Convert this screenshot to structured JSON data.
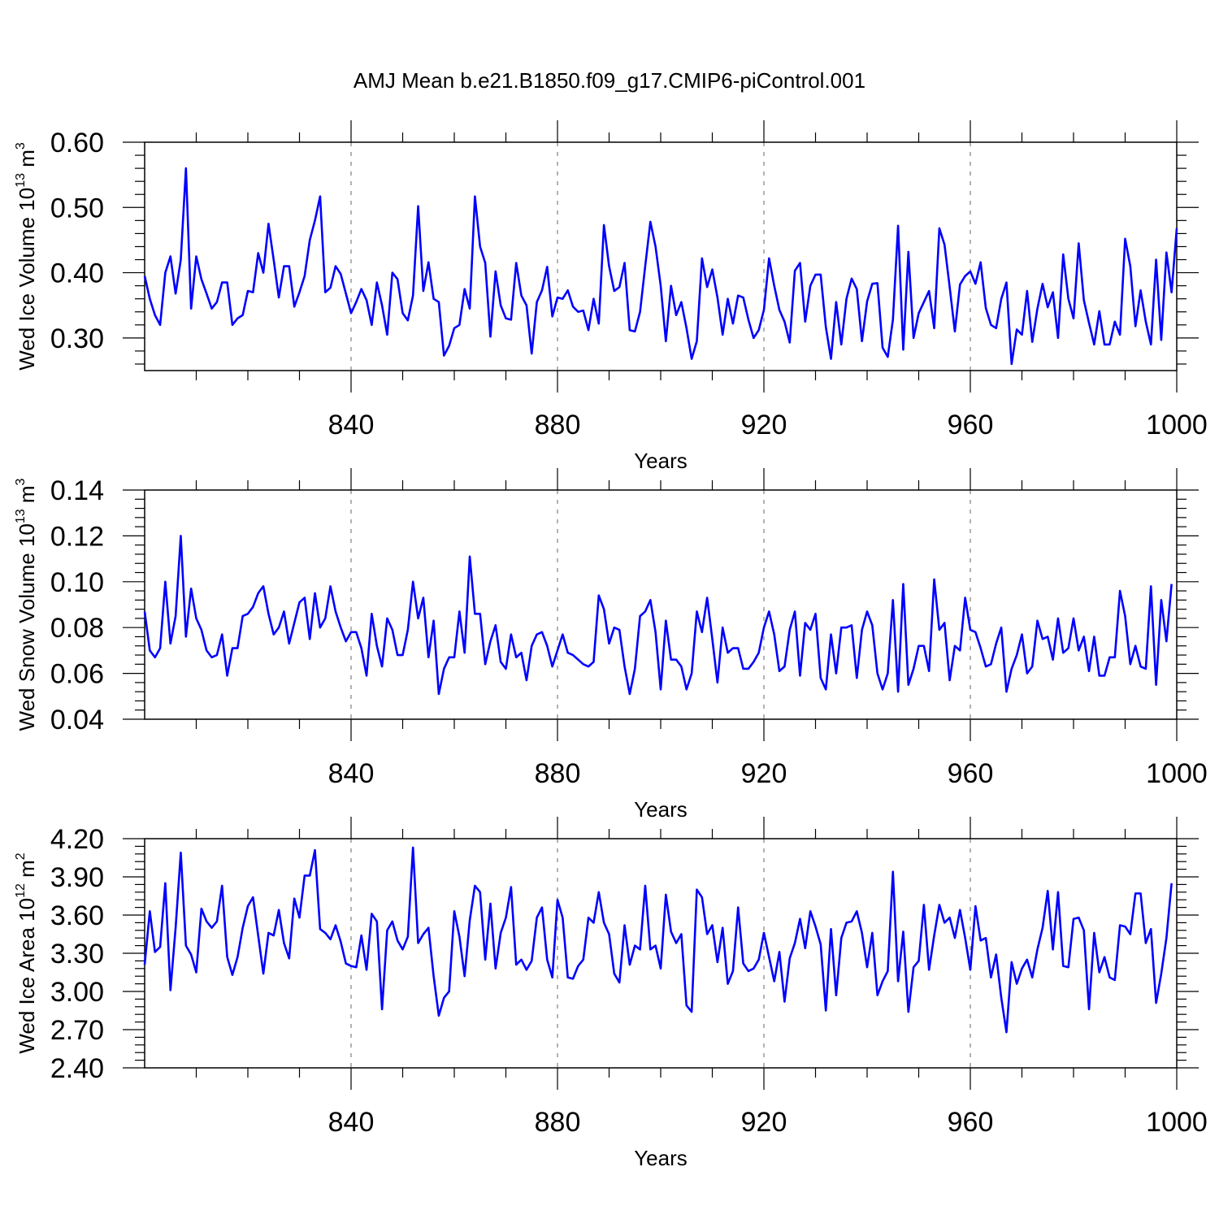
{
  "title": "AMJ Mean b.e21.B1850.f09_g17.CMIP6-piControl.001",
  "colors": {
    "line": "#0000ff",
    "axis": "#000000",
    "grid": "#808080"
  },
  "chart_data": [
    {
      "type": "line",
      "xlabel": "Years",
      "ylabel_main": "Wed Ice Volume 10",
      "ylabel_exp": "13",
      "ylabel_unit": " m",
      "ylabel_unit_exp": "3",
      "xlim": [
        800,
        1000
      ],
      "ylim": [
        0.25,
        0.6
      ],
      "xticks": [
        840,
        880,
        920,
        960,
        1000
      ],
      "xtick_labels": [
        "840",
        "880",
        "920",
        "960",
        "1000"
      ],
      "yticks": [
        0.3,
        0.4,
        0.5,
        0.6
      ],
      "ytick_labels": [
        "0.30",
        "0.40",
        "0.50",
        "0.60"
      ],
      "grid_x_dashed": [
        840,
        880,
        920,
        960
      ],
      "x_start": 800,
      "x_step": 1,
      "values": [
        0.395,
        0.36,
        0.335,
        0.32,
        0.4,
        0.425,
        0.368,
        0.42,
        0.56,
        0.345,
        0.425,
        0.39,
        0.368,
        0.345,
        0.355,
        0.385,
        0.385,
        0.32,
        0.33,
        0.335,
        0.372,
        0.37,
        0.43,
        0.4,
        0.475,
        0.42,
        0.362,
        0.41,
        0.41,
        0.348,
        0.37,
        0.395,
        0.45,
        0.48,
        0.517,
        0.37,
        0.377,
        0.41,
        0.398,
        0.368,
        0.338,
        0.355,
        0.375,
        0.358,
        0.32,
        0.385,
        0.35,
        0.305,
        0.4,
        0.39,
        0.338,
        0.327,
        0.365,
        0.502,
        0.372,
        0.416,
        0.36,
        0.355,
        0.273,
        0.288,
        0.315,
        0.32,
        0.375,
        0.345,
        0.517,
        0.44,
        0.415,
        0.302,
        0.402,
        0.35,
        0.33,
        0.328,
        0.415,
        0.365,
        0.35,
        0.276,
        0.355,
        0.373,
        0.409,
        0.333,
        0.362,
        0.36,
        0.373,
        0.348,
        0.34,
        0.342,
        0.312,
        0.36,
        0.322,
        0.473,
        0.41,
        0.372,
        0.378,
        0.415,
        0.312,
        0.31,
        0.34,
        0.41,
        0.478,
        0.44,
        0.38,
        0.295,
        0.38,
        0.335,
        0.355,
        0.315,
        0.268,
        0.295,
        0.422,
        0.378,
        0.405,
        0.362,
        0.305,
        0.36,
        0.322,
        0.365,
        0.362,
        0.328,
        0.3,
        0.312,
        0.343,
        0.422,
        0.38,
        0.343,
        0.325,
        0.293,
        0.403,
        0.415,
        0.325,
        0.38,
        0.397,
        0.397,
        0.317,
        0.268,
        0.355,
        0.29,
        0.36,
        0.391,
        0.375,
        0.295,
        0.356,
        0.383,
        0.384,
        0.285,
        0.271,
        0.328,
        0.472,
        0.282,
        0.432,
        0.3,
        0.338,
        0.355,
        0.372,
        0.315,
        0.468,
        0.443,
        0.378,
        0.31,
        0.382,
        0.395,
        0.402,
        0.383,
        0.416,
        0.346,
        0.32,
        0.315,
        0.36,
        0.385,
        0.26,
        0.313,
        0.305,
        0.372,
        0.294,
        0.345,
        0.383,
        0.347,
        0.37,
        0.3,
        0.428,
        0.36,
        0.33,
        0.445,
        0.358,
        0.323,
        0.29,
        0.341,
        0.29,
        0.29,
        0.325,
        0.305,
        0.452,
        0.41,
        0.318,
        0.373,
        0.325,
        0.29,
        0.42,
        0.297,
        0.431,
        0.37,
        0.468
      ]
    },
    {
      "type": "line",
      "xlabel": "Years",
      "ylabel_main": "Wed Snow Volume 10",
      "ylabel_exp": "13",
      "ylabel_unit": " m",
      "ylabel_unit_exp": "3",
      "xlim": [
        800,
        1000
      ],
      "ylim": [
        0.04,
        0.14
      ],
      "xticks": [
        840,
        880,
        920,
        960,
        1000
      ],
      "xtick_labels": [
        "840",
        "880",
        "920",
        "960",
        "1000"
      ],
      "yticks": [
        0.04,
        0.06,
        0.08,
        0.1,
        0.12,
        0.14
      ],
      "ytick_labels": [
        "0.04",
        "0.06",
        "0.08",
        "0.10",
        "0.12",
        "0.14"
      ],
      "grid_x_dashed": [
        840,
        880,
        920,
        960
      ],
      "x_start": 800,
      "x_step": 1,
      "values": [
        0.087,
        0.07,
        0.067,
        0.071,
        0.1,
        0.073,
        0.085,
        0.12,
        0.076,
        0.097,
        0.084,
        0.079,
        0.07,
        0.067,
        0.068,
        0.077,
        0.059,
        0.071,
        0.071,
        0.085,
        0.086,
        0.089,
        0.095,
        0.098,
        0.086,
        0.077,
        0.08,
        0.087,
        0.073,
        0.082,
        0.091,
        0.093,
        0.075,
        0.095,
        0.08,
        0.084,
        0.098,
        0.087,
        0.08,
        0.074,
        0.078,
        0.078,
        0.071,
        0.059,
        0.086,
        0.072,
        0.063,
        0.084,
        0.079,
        0.068,
        0.068,
        0.079,
        0.1,
        0.084,
        0.093,
        0.067,
        0.083,
        0.051,
        0.062,
        0.067,
        0.067,
        0.087,
        0.069,
        0.111,
        0.086,
        0.086,
        0.064,
        0.074,
        0.081,
        0.065,
        0.062,
        0.077,
        0.067,
        0.069,
        0.057,
        0.072,
        0.077,
        0.078,
        0.072,
        0.063,
        0.07,
        0.077,
        0.069,
        0.068,
        0.066,
        0.064,
        0.063,
        0.065,
        0.094,
        0.088,
        0.073,
        0.08,
        0.079,
        0.063,
        0.051,
        0.062,
        0.085,
        0.087,
        0.092,
        0.078,
        0.053,
        0.083,
        0.066,
        0.066,
        0.063,
        0.053,
        0.06,
        0.087,
        0.078,
        0.093,
        0.075,
        0.056,
        0.08,
        0.069,
        0.071,
        0.071,
        0.062,
        0.062,
        0.065,
        0.069,
        0.08,
        0.087,
        0.077,
        0.061,
        0.063,
        0.079,
        0.087,
        0.059,
        0.082,
        0.079,
        0.086,
        0.058,
        0.053,
        0.077,
        0.06,
        0.08,
        0.08,
        0.081,
        0.058,
        0.079,
        0.087,
        0.081,
        0.06,
        0.053,
        0.06,
        0.092,
        0.052,
        0.099,
        0.055,
        0.062,
        0.072,
        0.072,
        0.061,
        0.101,
        0.079,
        0.082,
        0.057,
        0.072,
        0.07,
        0.093,
        0.079,
        0.078,
        0.071,
        0.063,
        0.064,
        0.073,
        0.08,
        0.052,
        0.062,
        0.068,
        0.077,
        0.06,
        0.063,
        0.083,
        0.075,
        0.076,
        0.066,
        0.084,
        0.069,
        0.071,
        0.084,
        0.07,
        0.076,
        0.061,
        0.076,
        0.059,
        0.059,
        0.067,
        0.067,
        0.096,
        0.085,
        0.064,
        0.072,
        0.063,
        0.062,
        0.098,
        0.055,
        0.092,
        0.074,
        0.099
      ]
    },
    {
      "type": "line",
      "xlabel": "Years",
      "ylabel_main": "Wed Ice Area 10",
      "ylabel_exp": "12",
      "ylabel_unit": " m",
      "ylabel_unit_exp": "2",
      "xlim": [
        800,
        1000
      ],
      "ylim": [
        2.4,
        4.2
      ],
      "xticks": [
        840,
        880,
        920,
        960,
        1000
      ],
      "xtick_labels": [
        "840",
        "880",
        "920",
        "960",
        "1000"
      ],
      "yticks": [
        2.4,
        2.7,
        3.0,
        3.3,
        3.6,
        3.9,
        4.2
      ],
      "ytick_labels": [
        "2.40",
        "2.70",
        "3.00",
        "3.30",
        "3.60",
        "3.90",
        "4.20"
      ],
      "grid_x_dashed": [
        840,
        880,
        920,
        960
      ],
      "x_start": 800,
      "x_step": 1,
      "values": [
        3.21,
        3.63,
        3.31,
        3.35,
        3.85,
        3.01,
        3.5,
        4.09,
        3.36,
        3.29,
        3.15,
        3.65,
        3.55,
        3.5,
        3.55,
        3.83,
        3.27,
        3.13,
        3.27,
        3.5,
        3.67,
        3.74,
        3.44,
        3.14,
        3.46,
        3.44,
        3.64,
        3.38,
        3.26,
        3.73,
        3.58,
        3.91,
        3.91,
        4.11,
        3.49,
        3.46,
        3.41,
        3.52,
        3.39,
        3.22,
        3.2,
        3.19,
        3.44,
        3.17,
        3.61,
        3.55,
        2.86,
        3.48,
        3.55,
        3.4,
        3.33,
        3.43,
        4.13,
        3.38,
        3.45,
        3.5,
        3.12,
        2.81,
        2.95,
        3.0,
        3.63,
        3.43,
        3.12,
        3.56,
        3.83,
        3.78,
        3.25,
        3.69,
        3.18,
        3.46,
        3.58,
        3.82,
        3.21,
        3.25,
        3.17,
        3.24,
        3.58,
        3.66,
        3.25,
        3.11,
        3.72,
        3.58,
        3.11,
        3.1,
        3.2,
        3.25,
        3.58,
        3.54,
        3.78,
        3.54,
        3.45,
        3.14,
        3.07,
        3.52,
        3.21,
        3.36,
        3.33,
        3.83,
        3.33,
        3.36,
        3.18,
        3.76,
        3.47,
        3.38,
        3.45,
        2.89,
        2.84,
        3.8,
        3.74,
        3.45,
        3.52,
        3.23,
        3.5,
        3.06,
        3.16,
        3.66,
        3.22,
        3.16,
        3.18,
        3.25,
        3.46,
        3.27,
        3.08,
        3.31,
        2.92,
        3.26,
        3.38,
        3.57,
        3.34,
        3.63,
        3.51,
        3.37,
        2.85,
        3.49,
        2.97,
        3.42,
        3.54,
        3.55,
        3.63,
        3.46,
        3.19,
        3.46,
        2.97,
        3.08,
        3.16,
        3.94,
        3.08,
        3.47,
        2.84,
        3.19,
        3.24,
        3.68,
        3.17,
        3.44,
        3.68,
        3.54,
        3.58,
        3.42,
        3.64,
        3.42,
        3.17,
        3.67,
        3.4,
        3.42,
        3.11,
        3.29,
        2.95,
        2.68,
        3.23,
        3.06,
        3.18,
        3.25,
        3.11,
        3.33,
        3.5,
        3.79,
        3.33,
        3.78,
        3.2,
        3.19,
        3.57,
        3.58,
        3.48,
        2.86,
        3.46,
        3.15,
        3.27,
        3.11,
        3.09,
        3.52,
        3.51,
        3.45,
        3.77,
        3.77,
        3.38,
        3.49,
        2.91,
        3.14,
        3.42,
        3.85
      ]
    }
  ]
}
